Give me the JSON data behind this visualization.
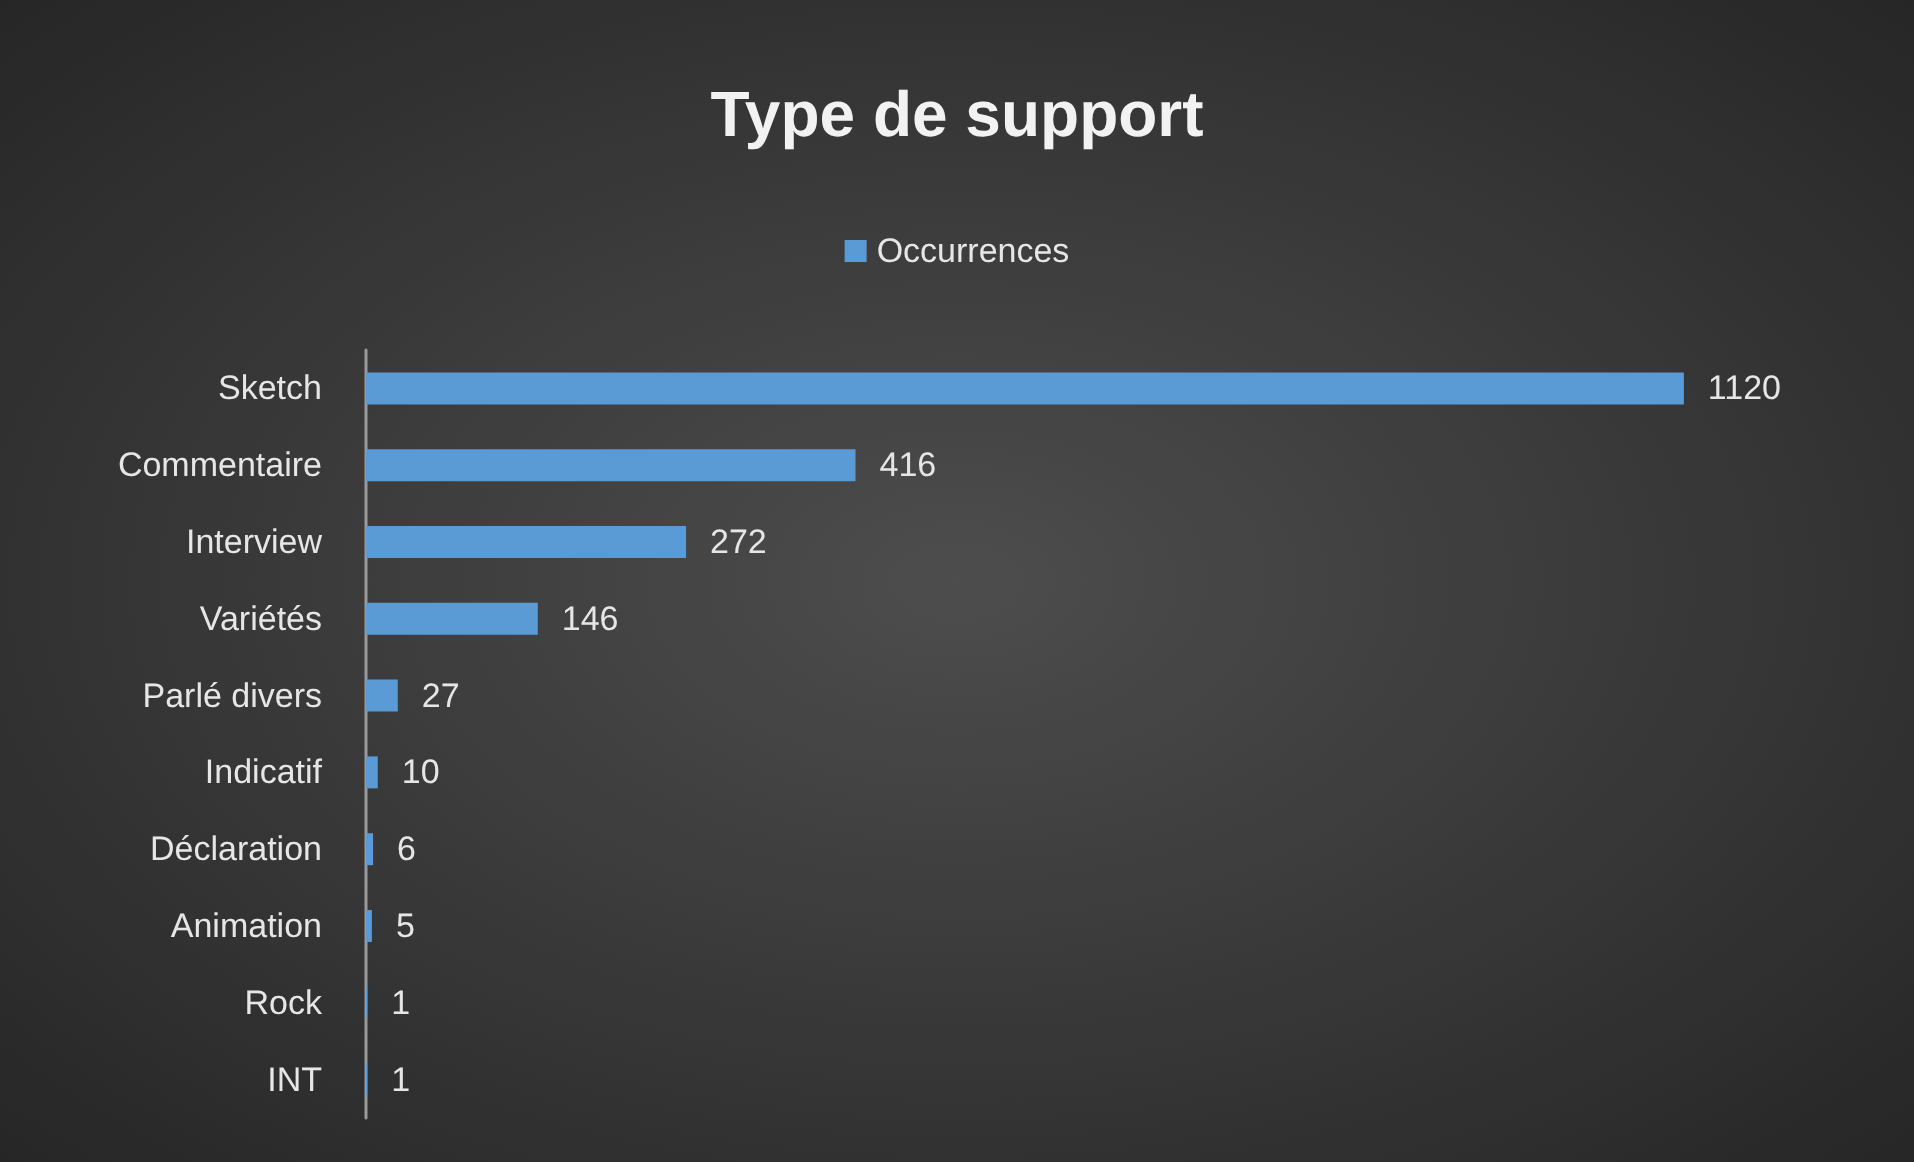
{
  "chart_data": {
    "type": "bar",
    "orientation": "horizontal",
    "title": "Type de support",
    "categories": [
      "Sketch",
      "Commentaire",
      "Interview",
      "Variétés",
      "Parlé divers",
      "Indicatif",
      "Déclaration",
      "Animation",
      "Rock",
      "INT"
    ],
    "series": [
      {
        "name": "Occurrences",
        "color": "#5b9bd5",
        "values": [
          1120,
          416,
          272,
          146,
          27,
          10,
          6,
          5,
          1,
          1
        ]
      }
    ],
    "data_labels": true,
    "legend": "top",
    "grid": false,
    "tick_labels": "y"
  }
}
